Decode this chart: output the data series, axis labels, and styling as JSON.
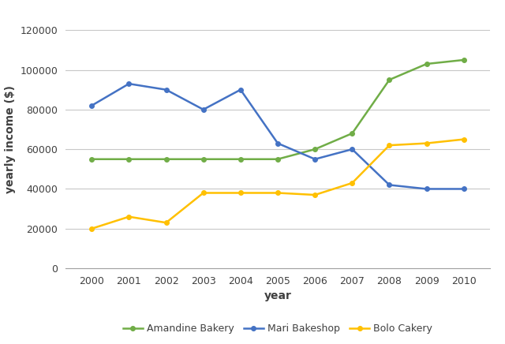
{
  "years": [
    2000,
    2001,
    2002,
    2003,
    2004,
    2005,
    2006,
    2007,
    2008,
    2009,
    2010
  ],
  "amandine": [
    55000,
    55000,
    55000,
    55000,
    55000,
    55000,
    60000,
    68000,
    95000,
    103000,
    105000
  ],
  "mari": [
    82000,
    93000,
    90000,
    80000,
    90000,
    63000,
    55000,
    60000,
    42000,
    40000,
    40000
  ],
  "bolo": [
    20000,
    26000,
    23000,
    38000,
    38000,
    38000,
    37000,
    43000,
    62000,
    63000,
    65000
  ],
  "amandine_color": "#70AD47",
  "mari_color": "#4472C4",
  "bolo_color": "#FFC000",
  "amandine_label": "Amandine Bakery",
  "mari_label": "Mari Bakeshop",
  "bolo_label": "Bolo Cakery",
  "xlabel": "year",
  "ylabel": "yearly income ($)",
  "ylim": [
    0,
    130000
  ],
  "yticks": [
    0,
    20000,
    40000,
    60000,
    80000,
    100000,
    120000
  ],
  "ytick_labels": [
    "0",
    "20000",
    "40000",
    "60000",
    "80000",
    "100000",
    "120000"
  ],
  "background_color": "#ffffff",
  "grid_color": "#c8c8c8"
}
